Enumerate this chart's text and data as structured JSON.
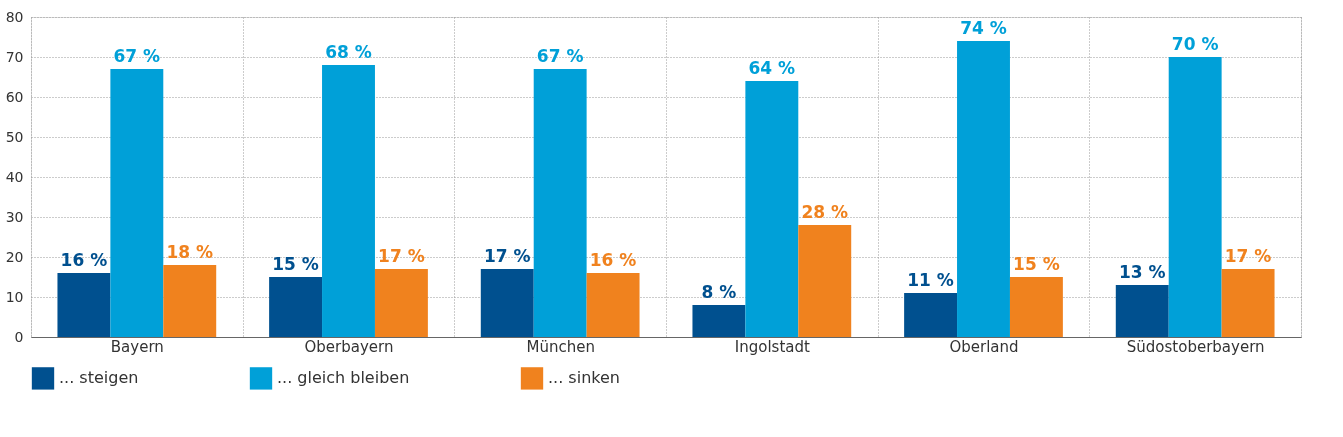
{
  "chart_data": {
    "type": "bar",
    "categories": [
      "Bayern",
      "Oberbayern",
      "München",
      "Ingolstadt",
      "Oberland",
      "Südostoberbayern"
    ],
    "series": [
      {
        "name": "... steigen",
        "color": "#00508f",
        "values": [
          16,
          15,
          17,
          8,
          11,
          13
        ],
        "value_labels": [
          "16 %",
          "15 %",
          "17 %",
          "8 %",
          "11 %",
          "13 %"
        ]
      },
      {
        "name": "... gleich bleiben",
        "color": "#00a0d8",
        "values": [
          67,
          68,
          67,
          64,
          74,
          70
        ],
        "value_labels": [
          "67 %",
          "68 %",
          "67 %",
          "64 %",
          "74 %",
          "70 %"
        ]
      },
      {
        "name": "... sinken",
        "color": "#f0821e",
        "values": [
          18,
          17,
          16,
          28,
          15,
          17
        ],
        "value_labels": [
          "18 %",
          "17 %",
          "16 %",
          "28 %",
          "15 %",
          "17 %"
        ]
      }
    ],
    "ylim": [
      0,
      80
    ],
    "yticks": [
      0,
      10,
      20,
      30,
      40,
      50,
      60,
      70,
      80
    ],
    "grid": true,
    "legend": "bottom left"
  }
}
